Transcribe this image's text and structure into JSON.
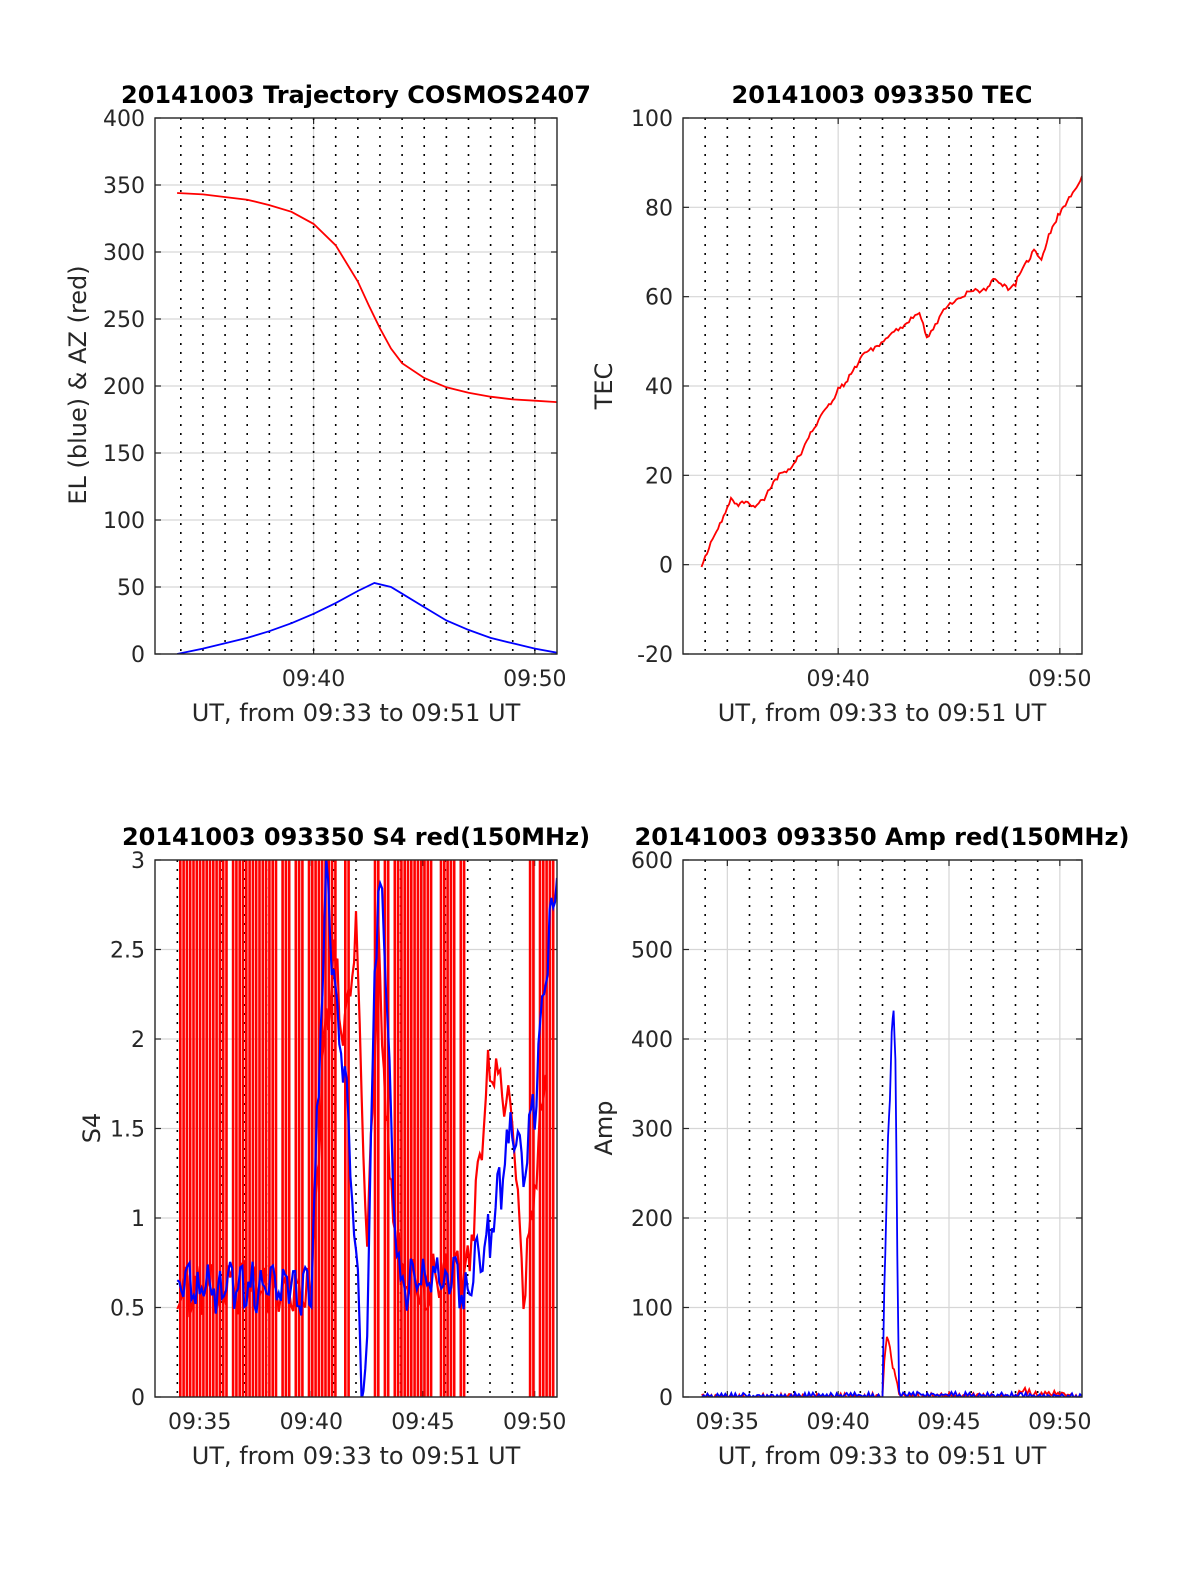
{
  "colors": {
    "red": "#ff0000",
    "blue": "#0000ff",
    "grid": "#d6d6d6"
  },
  "chart_data": [
    {
      "type": "line",
      "title": "20141003 Trajectory COSMOS2407",
      "xlabel": "UT, from 09:33 to 09:51 UT",
      "ylabel": "EL (blue) & AZ (red)",
      "xlim": [
        "09:32:50",
        "09:51:00"
      ],
      "ylim": [
        0,
        400
      ],
      "yticks": [
        0,
        50,
        100,
        150,
        200,
        250,
        300,
        350,
        400
      ],
      "xticks": [
        {
          "t": "09:40",
          "label": "09:40"
        },
        {
          "t": "09:50",
          "label": "09:50"
        }
      ],
      "marker_times": [
        "09:34",
        "09:35",
        "09:36",
        "09:37",
        "09:38",
        "09:39",
        "09:40",
        "09:41",
        "09:42",
        "09:43",
        "09:44",
        "09:45",
        "09:46",
        "09:47",
        "09:48",
        "09:49",
        "09:50"
      ],
      "grid": true,
      "series": [
        {
          "color": "red",
          "x": [
            "09:33:50",
            "09:35",
            "09:37",
            "09:38",
            "09:39",
            "09:40",
            "09:41",
            "09:42",
            "09:42:30",
            "09:43",
            "09:43:30",
            "09:44",
            "09:45",
            "09:46",
            "09:47",
            "09:48",
            "09:49",
            "09:50",
            "09:51"
          ],
          "y": [
            344,
            343,
            339,
            335,
            330,
            321,
            305,
            278,
            260,
            243,
            228,
            217,
            206,
            199,
            195,
            192,
            190,
            189,
            188
          ]
        },
        {
          "color": "blue",
          "x": [
            "09:33:50",
            "09:35",
            "09:36",
            "09:37",
            "09:38",
            "09:39",
            "09:40",
            "09:41",
            "09:42",
            "09:42:45",
            "09:43:30",
            "09:44",
            "09:45",
            "09:46",
            "09:47",
            "09:48",
            "09:49",
            "09:50",
            "09:51"
          ],
          "y": [
            0,
            4,
            8,
            12,
            17,
            23,
            30,
            38,
            47,
            53,
            50,
            45,
            35,
            25,
            18,
            12,
            8,
            4,
            1
          ]
        }
      ]
    },
    {
      "type": "line",
      "title": "20141003 093350 TEC",
      "xlabel": "UT, from 09:33 to 09:51 UT",
      "ylabel": "TEC",
      "xlim": [
        "09:33:00",
        "09:51:00"
      ],
      "ylim": [
        -20,
        100
      ],
      "yticks": [
        -20,
        0,
        20,
        40,
        60,
        80,
        100
      ],
      "xticks": [
        {
          "t": "09:40",
          "label": "09:40"
        },
        {
          "t": "09:50",
          "label": "09:50"
        }
      ],
      "marker_times": [
        "09:34",
        "09:35",
        "09:36",
        "09:37",
        "09:38",
        "09:39",
        "09:41",
        "09:42",
        "09:43",
        "09:44",
        "09:45",
        "09:46",
        "09:47",
        "09:48",
        "09:49"
      ],
      "grid": true,
      "series": [
        {
          "color": "red",
          "x": [
            "09:33:50",
            "09:34:20",
            "09:34:50",
            "09:35:10",
            "09:35:30",
            "09:35:50",
            "09:36:20",
            "09:36:50",
            "09:37:20",
            "09:37:50",
            "09:38:20",
            "09:38:50",
            "09:39:30",
            "09:40:00",
            "09:40:30",
            "09:41:00",
            "09:41:40",
            "09:42:20",
            "09:43:00",
            "09:43:40",
            "09:44:00",
            "09:44:40",
            "09:45:20",
            "09:46:00",
            "09:46:40",
            "09:47:10",
            "09:47:40",
            "09:48:00",
            "09:48:30",
            "09:48:50",
            "09:49:10",
            "09:49:30",
            "09:50:00",
            "09:50:30",
            "09:51:00"
          ],
          "y": [
            0,
            6,
            11,
            15,
            13,
            14,
            13,
            16,
            20,
            21,
            25,
            30,
            35,
            39,
            42,
            46,
            49,
            51,
            54,
            56,
            51,
            56,
            60,
            61,
            62,
            64,
            62,
            63,
            68,
            70,
            68,
            74,
            79,
            83,
            87
          ]
        }
      ]
    },
    {
      "type": "line",
      "title": "20141003 093350 S4 red(150MHz)",
      "xlabel": "UT, from 09:33 to 09:51 UT",
      "ylabel": "S4",
      "xlim": [
        "09:33:00",
        "09:51:00"
      ],
      "ylim": [
        0,
        3
      ],
      "yticks": [
        "0",
        "0.5",
        "1",
        "1.5",
        "2",
        "2.5",
        "3"
      ],
      "xticks": [
        {
          "t": "09:35",
          "label": "09:35"
        },
        {
          "t": "09:40",
          "label": "09:40"
        },
        {
          "t": "09:45",
          "label": "09:45"
        },
        {
          "t": "09:50",
          "label": "09:50"
        }
      ],
      "marker_times": [
        "09:34",
        "09:36",
        "09:37",
        "09:38",
        "09:39",
        "09:41",
        "09:42",
        "09:43",
        "09:44",
        "09:46",
        "09:47",
        "09:48",
        "09:49"
      ],
      "grid": true,
      "series": [
        {
          "color": "red",
          "note_free": true,
          "x": [
            "09:34:00",
            "09:36:00",
            "09:38:00",
            "09:40:00",
            "09:40:30",
            "09:41:00",
            "09:41:30",
            "09:42:00",
            "09:42:30",
            "09:43:00",
            "09:43:30",
            "09:44:00",
            "09:45:00",
            "09:46:00",
            "09:47:00",
            "09:48:00",
            "09:49:00",
            "09:49:30",
            "09:50:00",
            "09:50:30"
          ],
          "y": [
            0.6,
            0.6,
            0.6,
            0.6,
            1.8,
            2.5,
            2.0,
            2.6,
            0.8,
            2.5,
            1.2,
            0.7,
            0.6,
            0.7,
            0.7,
            1.9,
            1.6,
            0.5,
            1.2,
            1.8
          ]
        },
        {
          "color": "blue",
          "x": [
            "09:34:00",
            "09:35:00",
            "09:36:00",
            "09:37:00",
            "09:38:00",
            "09:39:00",
            "09:40:00",
            "09:40:20",
            "09:40:40",
            "09:41:00",
            "09:41:30",
            "09:42:00",
            "09:42:15",
            "09:42:30",
            "09:42:50",
            "09:43:10",
            "09:43:40",
            "09:44:00",
            "09:45:00",
            "09:46:00",
            "09:47:00",
            "09:47:30",
            "09:48:00",
            "09:48:30",
            "09:49:00",
            "09:49:30",
            "09:50:00",
            "09:50:30",
            "09:51:00"
          ],
          "y": [
            0.65,
            0.62,
            0.6,
            0.61,
            0.6,
            0.58,
            0.6,
            1.8,
            2.9,
            2.3,
            1.8,
            0.8,
            0.1,
            0.2,
            2.5,
            2.9,
            1.2,
            0.6,
            0.65,
            0.7,
            0.6,
            0.8,
            0.9,
            1.2,
            1.5,
            1.3,
            1.6,
            2.4,
            2.9
          ]
        }
      ]
    },
    {
      "type": "line",
      "title": "20141003 093350 Amp red(150MHz)",
      "xlabel": "UT, from 09:33 to 09:51 UT",
      "ylabel": "Amp",
      "xlim": [
        "09:33:00",
        "09:51:00"
      ],
      "ylim": [
        0,
        600
      ],
      "yticks": [
        0,
        100,
        200,
        300,
        400,
        500,
        600
      ],
      "xticks": [
        {
          "t": "09:35",
          "label": "09:35"
        },
        {
          "t": "09:40",
          "label": "09:40"
        },
        {
          "t": "09:45",
          "label": "09:45"
        },
        {
          "t": "09:50",
          "label": "09:50"
        }
      ],
      "marker_times": [
        "09:34",
        "09:36",
        "09:37",
        "09:38",
        "09:39",
        "09:41",
        "09:42",
        "09:43",
        "09:44",
        "09:46",
        "09:47",
        "09:48",
        "09:49"
      ],
      "grid": true,
      "series": [
        {
          "color": "red",
          "x": [
            "09:33:50",
            "09:42:00",
            "09:42:05",
            "09:42:12",
            "09:42:20",
            "09:42:28",
            "09:42:35",
            "09:42:45",
            "09:48:00",
            "09:48:20",
            "09:49:00",
            "09:49:30",
            "09:50:00",
            "09:51:00"
          ],
          "y": [
            0,
            1,
            40,
            70,
            55,
            35,
            22,
            2,
            1,
            8,
            2,
            5,
            3,
            1
          ]
        },
        {
          "color": "blue",
          "x": [
            "09:33:50",
            "09:42:00",
            "09:42:05",
            "09:42:10",
            "09:42:15",
            "09:42:20",
            "09:42:25",
            "09:42:30",
            "09:42:35",
            "09:42:40",
            "09:42:45",
            "09:51:00"
          ],
          "y": [
            1,
            2,
            120,
            200,
            290,
            330,
            410,
            430,
            380,
            160,
            3,
            1
          ]
        }
      ]
    }
  ]
}
